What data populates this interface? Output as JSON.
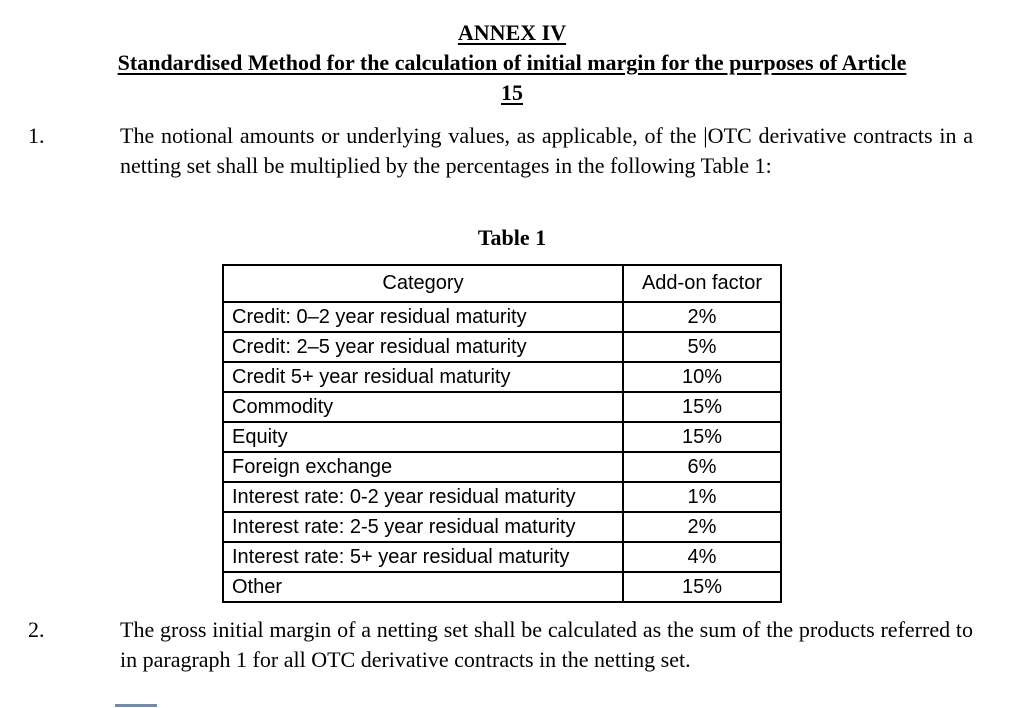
{
  "title": {
    "line1": "ANNEX IV",
    "line2": "Standardised Method for the calculation of initial margin for the purposes of Article",
    "line3": "15"
  },
  "paragraphs": [
    {
      "number": "1.",
      "text": "The notional amounts or underlying values, as applicable, of the |OTC derivative contracts in a netting set shall be multiplied by the percentages in the following Table 1:"
    },
    {
      "number": "2.",
      "text": "The gross initial margin of a netting set shall be calculated as the sum of the products referred to in paragraph 1 for all OTC derivative contracts in the netting set."
    }
  ],
  "table": {
    "caption": "Table 1",
    "headers": [
      "Category",
      "Add-on factor"
    ],
    "rows": [
      {
        "category": "Credit: 0–2 year residual maturity",
        "factor": "2%"
      },
      {
        "category": "Credit: 2–5 year residual maturity",
        "factor": "5%"
      },
      {
        "category": "Credit 5+ year residual maturity",
        "factor": "10%"
      },
      {
        "category": "Commodity",
        "factor": "15%"
      },
      {
        "category": "Equity",
        "factor": "15%"
      },
      {
        "category": "Foreign exchange",
        "factor": "6%"
      },
      {
        "category": "Interest rate: 0-2 year residual maturity",
        "factor": "1%"
      },
      {
        "category": "Interest rate: 2-5 year residual maturity",
        "factor": "2%"
      },
      {
        "category": "Interest rate: 5+ year residual maturity",
        "factor": "4%"
      },
      {
        "category": "Other",
        "factor": "15%"
      }
    ]
  },
  "colors": {
    "text": "#000000",
    "background": "#ffffff",
    "clipped_fragment": "#44658c"
  }
}
